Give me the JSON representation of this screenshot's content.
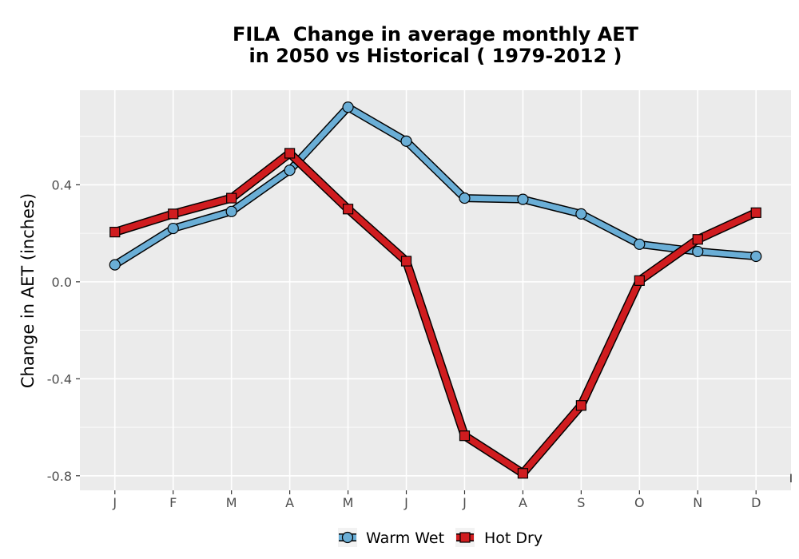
{
  "chart_data": {
    "type": "line",
    "title_lines": [
      "FILA  Change in average monthly AET",
      "in 2050 vs Historical ( 1979-2012 )"
    ],
    "xlabel": "",
    "ylabel": "Change in AET (inches)",
    "categories": [
      "J",
      "F",
      "M",
      "A",
      "M",
      "J",
      "J",
      "A",
      "S",
      "O",
      "N",
      "D"
    ],
    "ylim": [
      -0.86,
      0.79
    ],
    "yticks": [
      -0.8,
      -0.4,
      0.0,
      0.4
    ],
    "ytick_labels": [
      "-0.8",
      "-0.4",
      "0.0",
      "0.4"
    ],
    "grid": true,
    "legend_position": "bottom",
    "series": [
      {
        "name": "Warm Wet",
        "color": "#6aaed6",
        "marker": "circle",
        "values": [
          0.07,
          0.22,
          0.29,
          0.46,
          0.72,
          0.58,
          0.345,
          0.34,
          0.28,
          0.155,
          0.125,
          0.105
        ]
      },
      {
        "name": "Hot Dry",
        "color": "#d01c1f",
        "marker": "square",
        "values": [
          0.205,
          0.28,
          0.345,
          0.53,
          0.3,
          0.085,
          -0.635,
          -0.79,
          -0.51,
          0.005,
          0.175,
          0.285
        ]
      }
    ],
    "stray_mark": "I"
  }
}
